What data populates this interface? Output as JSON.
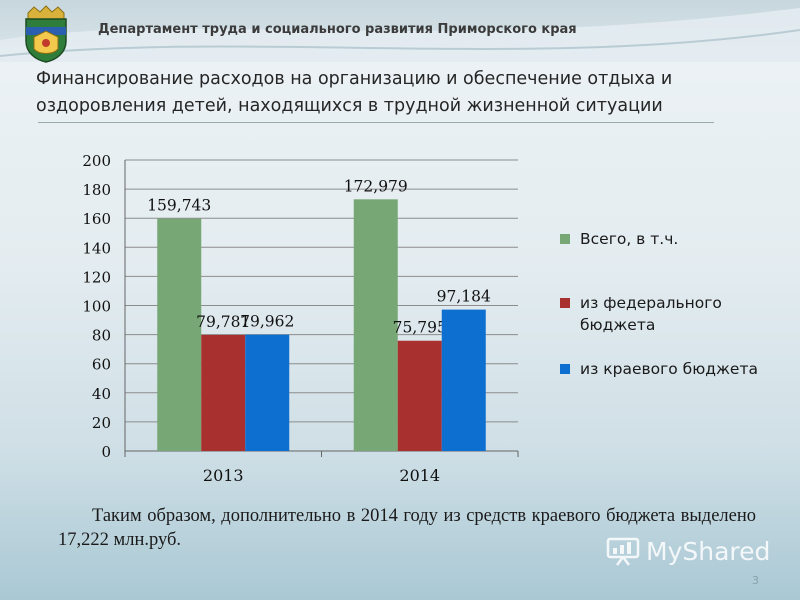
{
  "header": {
    "department": "Департамент труда и социального развития Приморского края",
    "emblem_icon": "primorsky-krai-coat-of-arms-icon"
  },
  "slide": {
    "title": "Финансирование расходов на организацию и обеспечение отдыха и оздоровления детей, находящихся в трудной жизненной ситуации",
    "conclusion": "Таким образом, дополнительно в 2014 году из средств краевого бюджета выделено 17,222 млн.руб.",
    "page_number": "3"
  },
  "watermark": {
    "text": "MyShared",
    "icon": "presentation-board-icon"
  },
  "chart_data": {
    "type": "bar",
    "categories": [
      "2013",
      "2014"
    ],
    "series": [
      {
        "name": "Всего, в т.ч.",
        "values": [
          159.743,
          172.979
        ],
        "labels": [
          "159,743",
          "172,979"
        ],
        "color": "#77a774"
      },
      {
        "name": "из федерального бюджета",
        "values": [
          79.781,
          75.795
        ],
        "labels": [
          "79,781",
          "75,795"
        ],
        "color": "#a8302f"
      },
      {
        "name": "из краевого бюджета",
        "values": [
          79.962,
          97.184
        ],
        "labels": [
          "79,962",
          "97,184"
        ],
        "color": "#0d6fd0"
      }
    ],
    "ylim": [
      0,
      200
    ],
    "yticks": [
      "0",
      "20",
      "40",
      "60",
      "80",
      "100",
      "120",
      "140",
      "160",
      "180",
      "200"
    ],
    "grid": true,
    "legend_position": "right",
    "title": "",
    "xlabel": "",
    "ylabel": ""
  }
}
